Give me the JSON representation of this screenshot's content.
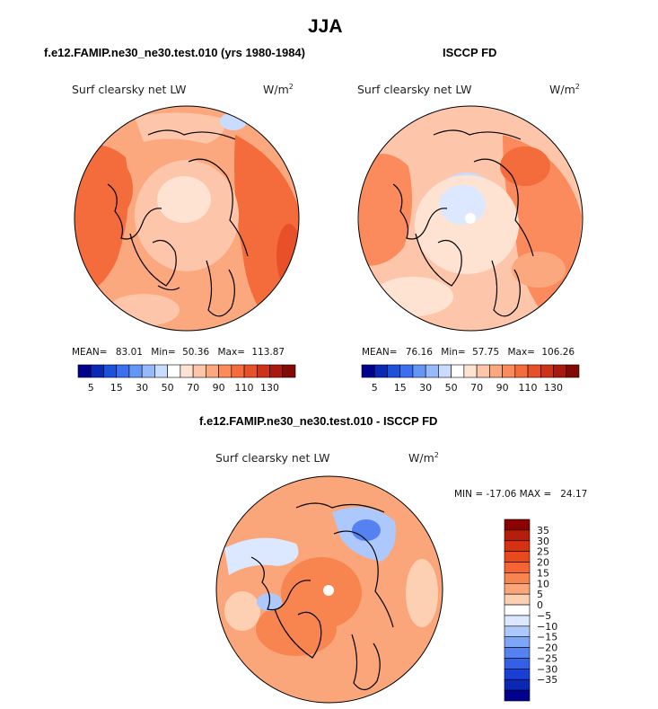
{
  "title": "JJA",
  "panels": [
    {
      "heading": "f.e12.FAMIP.ne30_ne30.test.010 (yrs 1980-1984)",
      "field_label": "Surf clearsky net LW",
      "units": "W/m",
      "units_exp": "2",
      "mean_label": "MEAN=",
      "mean": "83.01",
      "min_label": "Min=",
      "min": "50.36",
      "max_label": "Max=",
      "max": "113.87"
    },
    {
      "heading": "ISCCP FD",
      "field_label": "Surf clearsky net LW",
      "units": "W/m",
      "units_exp": "2",
      "mean_label": "MEAN=",
      "mean": "76.16",
      "min_label": "Min=",
      "min": "57.75",
      "max_label": "Max=",
      "max": "106.26"
    }
  ],
  "diff_panel": {
    "heading": "f.e12.FAMIP.ne30_ne30.test.010 - ISCCP FD",
    "field_label": "Surf clearsky net LW",
    "units": "W/m",
    "units_exp": "2",
    "minmax_text": "MIN = -17.06 MAX =   24.17"
  },
  "abs_colorbar": {
    "colors": [
      "#00008c",
      "#0a28b4",
      "#1e50dc",
      "#3c6ef0",
      "#6496f5",
      "#96b9fa",
      "#c8dcff",
      "#ffffff",
      "#fee2d2",
      "#fdc6aa",
      "#fca87e",
      "#fb8a5c",
      "#f56c3c",
      "#e8502a",
      "#cd3219",
      "#aa190f",
      "#820a05"
    ],
    "tick_labels": [
      "5",
      "15",
      "30",
      "50",
      "70",
      "90",
      "110",
      "130"
    ],
    "tick_boxes": [
      1,
      3,
      5,
      7,
      9,
      11,
      13,
      15
    ]
  },
  "diff_colorbar": {
    "colors_top_to_bottom": [
      "#8b0000",
      "#b51e0a",
      "#d43211",
      "#e84a1e",
      "#f56432",
      "#f8844f",
      "#faa67a",
      "#fdd0b4",
      "#ffffff",
      "#dbe8ff",
      "#adc8fc",
      "#7ea6f6",
      "#5582f0",
      "#3460e6",
      "#1a3fd6",
      "#0a28b4",
      "#00008c"
    ],
    "labels_top_to_bottom": [
      "35",
      "30",
      "25",
      "20",
      "15",
      "10",
      "5",
      "0",
      "−5",
      "−10",
      "−15",
      "−20",
      "−25",
      "−30",
      "−35"
    ]
  },
  "chart_data": [
    {
      "type": "heatmap",
      "projection": "north polar stereographic",
      "title": "f.e12.FAMIP.ne30_ne30.test.010 (yrs 1980-1984)",
      "field": "Surf clearsky net LW",
      "units": "W/m2",
      "mean": 83.01,
      "min": 50.36,
      "max": 113.87,
      "levels": [
        5,
        10,
        15,
        20,
        30,
        40,
        50,
        60,
        70,
        80,
        90,
        100,
        110,
        120,
        130
      ]
    },
    {
      "type": "heatmap",
      "projection": "north polar stereographic",
      "title": "ISCCP FD",
      "field": "Surf clearsky net LW",
      "units": "W/m2",
      "mean": 76.16,
      "min": 57.75,
      "max": 106.26,
      "levels": [
        5,
        10,
        15,
        20,
        30,
        40,
        50,
        60,
        70,
        80,
        90,
        100,
        110,
        120,
        130
      ]
    },
    {
      "type": "heatmap",
      "projection": "north polar stereographic",
      "title": "f.e12.FAMIP.ne30_ne30.test.010 - ISCCP FD",
      "field": "Surf clearsky net LW",
      "units": "W/m2",
      "min": -17.06,
      "max": 24.17,
      "levels": [
        -35,
        -30,
        -25,
        -20,
        -15,
        -10,
        -5,
        0,
        5,
        10,
        15,
        20,
        25,
        30,
        35
      ]
    }
  ]
}
